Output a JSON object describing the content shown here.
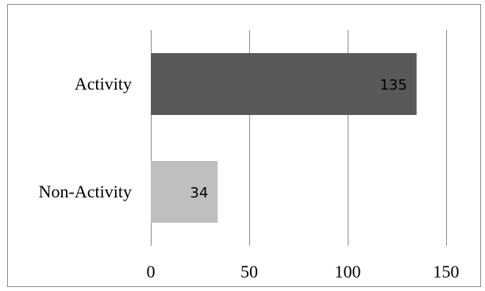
{
  "chart_data": {
    "type": "bar",
    "orientation": "horizontal",
    "categories": [
      "Activity",
      "Non-Activity"
    ],
    "values": [
      135,
      34
    ],
    "data_labels": [
      "135",
      "34"
    ],
    "colors": [
      "#595959",
      "#bfbfbf"
    ],
    "xlim": [
      0,
      150
    ],
    "x_ticks": [
      {
        "value": 0,
        "label": "0"
      },
      {
        "value": 50,
        "label": "50"
      },
      {
        "value": 100,
        "label": "100"
      },
      {
        "value": 150,
        "label": "150"
      }
    ],
    "grid": true,
    "legend": "none"
  }
}
